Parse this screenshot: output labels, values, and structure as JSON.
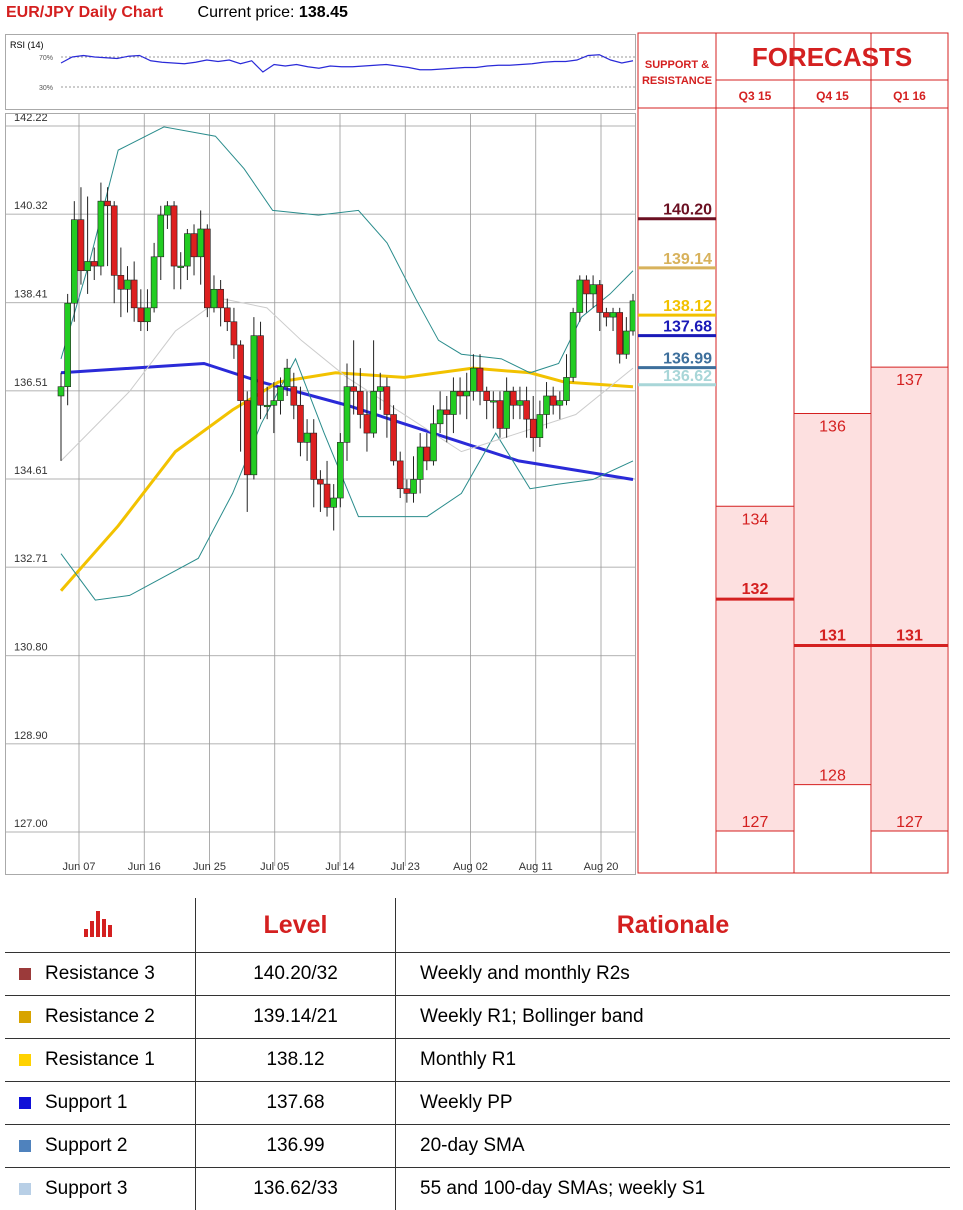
{
  "header": {
    "title": "EUR/JPY Daily Chart",
    "price_label": "Current price:",
    "price_value": "138.45"
  },
  "rsi": {
    "label": "RSI (14)",
    "levels": [
      "70%",
      "30%"
    ]
  },
  "chart_data": {
    "type": "candlestick",
    "y_ticks": [
      "142.22",
      "140.32",
      "138.41",
      "136.51",
      "134.61",
      "132.71",
      "130.80",
      "128.90",
      "127.00"
    ],
    "ylim": [
      127.0,
      142.22
    ],
    "x_ticks": [
      "Jun 07",
      "Jun 16",
      "Jun 25",
      "Jul 05",
      "Jul 14",
      "Jul 23",
      "Aug 02",
      "Aug 11",
      "Aug 20"
    ],
    "candles": [
      [
        136.4,
        136.6,
        135.0,
        136.9
      ],
      [
        136.6,
        138.4,
        136.2,
        138.6
      ],
      [
        138.4,
        140.2,
        138.0,
        140.6
      ],
      [
        140.2,
        139.1,
        138.8,
        140.9
      ],
      [
        139.1,
        139.3,
        138.6,
        140.7
      ],
      [
        139.3,
        139.2,
        138.9,
        139.6
      ],
      [
        139.2,
        140.6,
        139.0,
        141.0
      ],
      [
        140.6,
        140.5,
        139.2,
        140.9
      ],
      [
        140.5,
        139.0,
        138.4,
        140.6
      ],
      [
        139.0,
        138.7,
        138.1,
        139.6
      ],
      [
        138.7,
        138.9,
        138.2,
        139.2
      ],
      [
        138.9,
        138.3,
        138.0,
        139.3
      ],
      [
        138.3,
        138.0,
        137.8,
        138.7
      ],
      [
        138.0,
        138.3,
        137.8,
        138.7
      ],
      [
        138.3,
        139.4,
        138.2,
        139.7
      ],
      [
        139.4,
        140.3,
        138.9,
        140.5
      ],
      [
        140.3,
        140.5,
        140.0,
        140.6
      ],
      [
        140.5,
        139.2,
        138.7,
        140.6
      ],
      [
        139.2,
        139.2,
        138.7,
        139.5
      ],
      [
        139.2,
        139.9,
        138.9,
        140.0
      ],
      [
        139.9,
        139.4,
        139.0,
        140.1
      ],
      [
        139.4,
        140.0,
        138.8,
        140.4
      ],
      [
        140.0,
        138.3,
        138.1,
        140.1
      ],
      [
        138.3,
        138.7,
        138.2,
        139.0
      ],
      [
        138.7,
        138.3,
        137.9,
        138.9
      ],
      [
        138.3,
        138.0,
        137.8,
        138.5
      ],
      [
        138.0,
        137.5,
        137.2,
        138.3
      ],
      [
        137.5,
        136.3,
        135.2,
        137.6
      ],
      [
        136.3,
        134.7,
        133.9,
        136.5
      ],
      [
        134.7,
        137.7,
        134.6,
        138.1
      ],
      [
        137.7,
        136.2,
        135.9,
        138.0
      ],
      [
        136.2,
        136.2,
        135.9,
        136.6
      ],
      [
        136.2,
        136.3,
        135.6,
        136.7
      ],
      [
        136.3,
        136.6,
        136.0,
        136.8
      ],
      [
        136.6,
        137.0,
        136.4,
        137.2
      ],
      [
        136.6,
        136.2,
        135.9,
        136.9
      ],
      [
        136.2,
        135.4,
        135.1,
        136.6
      ],
      [
        135.4,
        135.6,
        135.0,
        135.9
      ],
      [
        135.6,
        134.6,
        134.0,
        135.9
      ],
      [
        134.6,
        134.5,
        133.9,
        134.8
      ],
      [
        134.5,
        134.0,
        133.8,
        135.0
      ],
      [
        134.0,
        134.2,
        133.5,
        134.5
      ],
      [
        134.2,
        135.4,
        134.0,
        135.6
      ],
      [
        135.4,
        136.6,
        135.0,
        137.1
      ],
      [
        136.6,
        136.5,
        136.0,
        137.6
      ],
      [
        136.5,
        136.0,
        135.7,
        137.0
      ],
      [
        136.0,
        135.6,
        135.2,
        136.5
      ],
      [
        135.6,
        136.5,
        135.5,
        137.6
      ],
      [
        136.5,
        136.6,
        136.1,
        136.9
      ],
      [
        136.6,
        136.0,
        135.5,
        136.8
      ],
      [
        136.0,
        135.0,
        134.9,
        136.2
      ],
      [
        135.0,
        134.4,
        134.2,
        135.2
      ],
      [
        134.4,
        134.3,
        134.1,
        134.6
      ],
      [
        134.3,
        134.6,
        134.1,
        135.1
      ],
      [
        134.6,
        135.3,
        134.3,
        135.6
      ],
      [
        135.3,
        135.0,
        134.8,
        135.6
      ],
      [
        135.0,
        135.8,
        134.9,
        136.2
      ],
      [
        135.8,
        136.1,
        135.6,
        136.5
      ],
      [
        136.1,
        136.0,
        135.4,
        136.4
      ],
      [
        136.0,
        136.5,
        135.6,
        136.8
      ],
      [
        136.5,
        136.4,
        136.0,
        136.8
      ],
      [
        136.4,
        136.5,
        135.9,
        136.9
      ],
      [
        136.5,
        137.0,
        136.3,
        137.3
      ],
      [
        137.0,
        136.5,
        136.2,
        137.3
      ],
      [
        136.5,
        136.3,
        135.9,
        136.6
      ],
      [
        136.3,
        136.3,
        135.7,
        136.5
      ],
      [
        136.3,
        135.7,
        135.5,
        136.5
      ],
      [
        135.7,
        136.5,
        135.5,
        136.8
      ],
      [
        136.5,
        136.2,
        135.9,
        136.6
      ],
      [
        136.2,
        136.3,
        135.9,
        136.6
      ],
      [
        136.3,
        135.9,
        135.5,
        136.6
      ],
      [
        135.9,
        135.5,
        135.2,
        136.4
      ],
      [
        135.5,
        136.0,
        135.3,
        136.3
      ],
      [
        136.0,
        136.4,
        135.7,
        136.7
      ],
      [
        136.4,
        136.2,
        136.0,
        136.6
      ],
      [
        136.2,
        136.3,
        135.9,
        136.5
      ],
      [
        136.3,
        136.8,
        136.2,
        137.3
      ],
      [
        136.8,
        138.2,
        136.7,
        138.3
      ],
      [
        138.2,
        138.9,
        138.0,
        139.0
      ],
      [
        138.9,
        138.6,
        138.2,
        139.0
      ],
      [
        138.6,
        138.8,
        138.3,
        139.0
      ],
      [
        138.8,
        138.2,
        137.8,
        138.9
      ],
      [
        138.2,
        138.1,
        137.9,
        138.3
      ],
      [
        138.1,
        138.2,
        137.8,
        138.3
      ],
      [
        138.2,
        137.3,
        137.1,
        138.3
      ],
      [
        137.3,
        137.8,
        137.2,
        138.1
      ],
      [
        137.8,
        138.45,
        137.7,
        138.6
      ]
    ],
    "lines": [
      {
        "name": "SMA blue",
        "color": "#2a2ad8",
        "points": [
          [
            0,
            136.9
          ],
          [
            0.25,
            137.1
          ],
          [
            0.35,
            136.7
          ],
          [
            0.5,
            136.2
          ],
          [
            0.65,
            135.6
          ],
          [
            0.8,
            135.0
          ],
          [
            1,
            134.6
          ]
        ]
      },
      {
        "name": "SMA yellow",
        "color": "#f2c200",
        "points": [
          [
            0,
            132.2
          ],
          [
            0.1,
            133.6
          ],
          [
            0.2,
            135.2
          ],
          [
            0.3,
            136.1
          ],
          [
            0.38,
            136.7
          ],
          [
            0.48,
            136.9
          ],
          [
            0.6,
            136.8
          ],
          [
            0.72,
            137.0
          ],
          [
            0.82,
            136.9
          ],
          [
            0.88,
            136.7
          ],
          [
            1,
            136.6
          ]
        ]
      },
      {
        "name": "Bollinger upper",
        "color": "#2a8c8c",
        "points": [
          [
            0,
            137.2
          ],
          [
            0.05,
            139.3
          ],
          [
            0.1,
            141.7
          ],
          [
            0.18,
            142.2
          ],
          [
            0.27,
            142.0
          ],
          [
            0.32,
            141.3
          ],
          [
            0.37,
            140.4
          ],
          [
            0.45,
            140.3
          ],
          [
            0.52,
            140.4
          ],
          [
            0.57,
            139.7
          ],
          [
            0.62,
            138.5
          ],
          [
            0.66,
            137.6
          ],
          [
            0.7,
            137.3
          ],
          [
            0.77,
            137.2
          ],
          [
            0.82,
            136.9
          ],
          [
            0.87,
            137.1
          ],
          [
            0.91,
            138.1
          ],
          [
            0.96,
            138.6
          ],
          [
            1,
            139.1
          ]
        ]
      },
      {
        "name": "Bollinger lower",
        "color": "#2a8c8c",
        "points": [
          [
            0,
            133.0
          ],
          [
            0.06,
            132.0
          ],
          [
            0.12,
            132.1
          ],
          [
            0.24,
            132.9
          ],
          [
            0.3,
            134.3
          ],
          [
            0.35,
            135.8
          ],
          [
            0.41,
            137.2
          ],
          [
            0.46,
            135.6
          ],
          [
            0.52,
            133.8
          ],
          [
            0.58,
            133.8
          ],
          [
            0.64,
            133.8
          ],
          [
            0.7,
            134.3
          ],
          [
            0.76,
            135.6
          ],
          [
            0.82,
            134.4
          ],
          [
            0.87,
            134.5
          ],
          [
            0.93,
            134.6
          ],
          [
            1,
            135.0
          ]
        ]
      },
      {
        "name": "Bollinger mid",
        "color": "#cccccc",
        "points": [
          [
            0,
            135.0
          ],
          [
            0.12,
            136.5
          ],
          [
            0.2,
            137.8
          ],
          [
            0.28,
            138.5
          ],
          [
            0.36,
            138.3
          ],
          [
            0.42,
            137.6
          ],
          [
            0.5,
            136.8
          ],
          [
            0.6,
            136.0
          ],
          [
            0.7,
            135.2
          ],
          [
            0.8,
            135.6
          ],
          [
            0.9,
            136.0
          ],
          [
            1,
            137.0
          ]
        ]
      }
    ],
    "rsi_series": [
      62,
      70,
      72,
      70,
      69,
      68,
      71,
      72,
      65,
      63,
      62,
      61,
      63,
      66,
      64,
      66,
      61,
      65,
      50,
      60,
      58,
      60,
      57,
      55,
      58,
      57,
      57,
      58,
      59,
      60,
      58,
      56,
      53,
      53,
      54,
      55,
      56,
      56,
      58,
      59,
      59,
      60,
      61,
      63,
      64,
      64,
      66,
      72,
      73,
      66,
      62,
      65
    ]
  },
  "support_resistance": {
    "header": "SUPPORT & RESISTANCE",
    "levels": [
      {
        "label": "140.20",
        "color": "#6b1022",
        "value": 140.2
      },
      {
        "label": "139.14",
        "color": "#d8b25c",
        "value": 139.14
      },
      {
        "label": "138.12",
        "color": "#f2c200",
        "value": 138.12
      },
      {
        "label": "137.68",
        "color": "#1a1ab8",
        "value": 137.68
      },
      {
        "label": "136.99",
        "color": "#3d6f9c",
        "value": 136.99
      },
      {
        "label": "136.62",
        "color": "#a8d6d8",
        "value": 136.62
      }
    ]
  },
  "forecasts": {
    "title": "FORECASTS",
    "columns": [
      {
        "label": "Q3 15",
        "high": "134",
        "mid": "132",
        "low": "127",
        "high_v": 134,
        "mid_v": 132,
        "low_v": 127
      },
      {
        "label": "Q4 15",
        "high": "136",
        "mid": "131",
        "low": "128",
        "high_v": 136,
        "mid_v": 131,
        "low_v": 128
      },
      {
        "label": "Q1 16",
        "high": "137",
        "mid": "131",
        "low": "127",
        "high_v": 137,
        "mid_v": 131,
        "low_v": 127
      }
    ]
  },
  "levels_table": {
    "col_level": "Level",
    "col_rationale": "Rationale",
    "rows": [
      {
        "name": "Resistance 3",
        "color": "#9b3a3a",
        "level": "140.20/32",
        "rationale": "Weekly and monthly R2s"
      },
      {
        "name": "Resistance 2",
        "color": "#d8a400",
        "level": "139.14/21",
        "rationale": "Weekly R1; Bollinger band"
      },
      {
        "name": "Resistance 1",
        "color": "#ffd200",
        "level": "138.12",
        "rationale": "Monthly R1"
      },
      {
        "name": "Support 1",
        "color": "#1010d8",
        "level": "137.68",
        "rationale": "Weekly PP"
      },
      {
        "name": "Support 2",
        "color": "#4f82bd",
        "level": "136.99",
        "rationale": "20-day SMA"
      },
      {
        "name": "Support 3",
        "color": "#b8cfe6",
        "level": "136.62/33",
        "rationale": "55 and 100-day SMAs; weekly S1"
      }
    ]
  }
}
